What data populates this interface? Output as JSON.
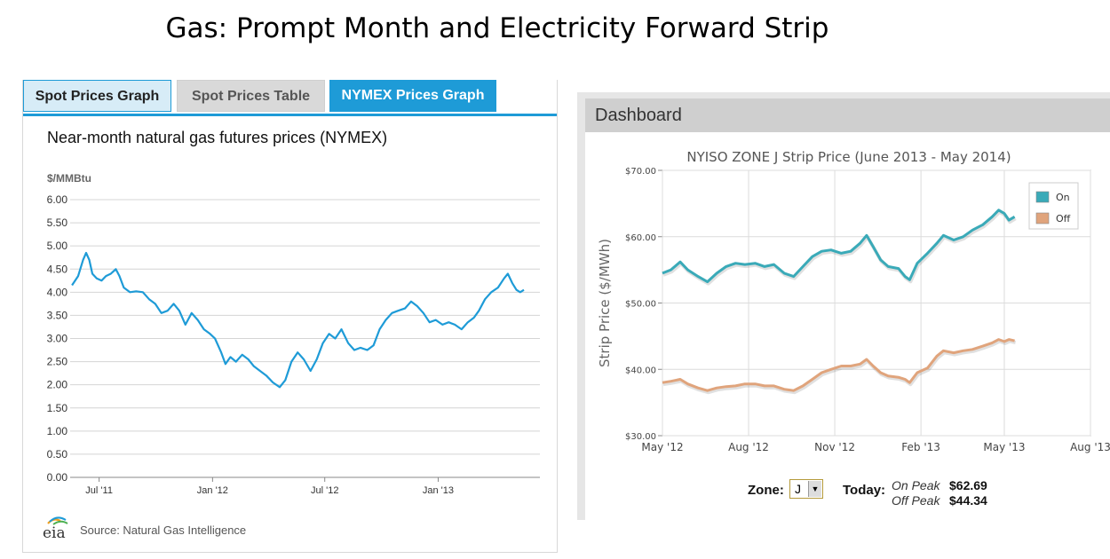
{
  "slide_title": "Gas: Prompt Month and Electricity Forward Strip",
  "eia": {
    "tabs": [
      "Spot Prices Graph",
      "Spot Prices Table",
      "NYMEX Prices Graph"
    ],
    "active_tab": "NYMEX Prices Graph",
    "source": "Source: Natural Gas Intelligence",
    "logo_text": "eia"
  },
  "dashboard": {
    "header": "Dashboard",
    "zone_label": "Zone:",
    "zone_value": "J",
    "today_label": "Today:",
    "on_peak_label": "On Peak",
    "on_peak_value": "$62.69",
    "off_peak_label": "Off Peak",
    "off_peak_value": "$44.34"
  },
  "colors": {
    "accent": "#1e9bd7",
    "on": "#3aaab8",
    "off": "#e0a47c"
  },
  "chart_data": [
    {
      "type": "line",
      "title": "Near-month natural gas futures prices (NYMEX)",
      "ylabel": "$/MMBtu",
      "ylim": [
        0,
        6
      ],
      "yticks": [
        "0.00",
        "0.50",
        "1.00",
        "1.50",
        "2.00",
        "2.50",
        "3.00",
        "3.50",
        "4.00",
        "4.50",
        "5.00",
        "5.50",
        "6.00"
      ],
      "xticks": [
        {
          "label": "Jul '11",
          "x": "2011-07-01"
        },
        {
          "label": "Jan '12",
          "x": "2012-01-01"
        },
        {
          "label": "Jul '12",
          "x": "2012-07-01"
        },
        {
          "label": "Jan '13",
          "x": "2013-01-01"
        }
      ],
      "xlim": [
        "2011-05-15",
        "2013-06-15"
      ],
      "grid": true,
      "series": [
        {
          "color": "#1e9bd7",
          "points": [
            [
              "2011-05-18",
              4.15
            ],
            [
              "2011-05-28",
              4.35
            ],
            [
              "2011-06-05",
              4.7
            ],
            [
              "2011-06-10",
              4.85
            ],
            [
              "2011-06-15",
              4.7
            ],
            [
              "2011-06-20",
              4.4
            ],
            [
              "2011-06-27",
              4.3
            ],
            [
              "2011-07-05",
              4.25
            ],
            [
              "2011-07-12",
              4.35
            ],
            [
              "2011-07-20",
              4.4
            ],
            [
              "2011-07-28",
              4.5
            ],
            [
              "2011-08-03",
              4.35
            ],
            [
              "2011-08-10",
              4.1
            ],
            [
              "2011-08-20",
              4.0
            ],
            [
              "2011-08-30",
              4.02
            ],
            [
              "2011-09-10",
              4.0
            ],
            [
              "2011-09-20",
              3.85
            ],
            [
              "2011-09-30",
              3.75
            ],
            [
              "2011-10-10",
              3.55
            ],
            [
              "2011-10-20",
              3.6
            ],
            [
              "2011-10-30",
              3.75
            ],
            [
              "2011-11-08",
              3.6
            ],
            [
              "2011-11-18",
              3.3
            ],
            [
              "2011-11-28",
              3.55
            ],
            [
              "2011-12-08",
              3.4
            ],
            [
              "2011-12-18",
              3.2
            ],
            [
              "2011-12-28",
              3.1
            ],
            [
              "2012-01-05",
              3.0
            ],
            [
              "2012-01-15",
              2.7
            ],
            [
              "2012-01-22",
              2.45
            ],
            [
              "2012-01-30",
              2.6
            ],
            [
              "2012-02-08",
              2.5
            ],
            [
              "2012-02-18",
              2.65
            ],
            [
              "2012-02-28",
              2.55
            ],
            [
              "2012-03-08",
              2.4
            ],
            [
              "2012-03-18",
              2.3
            ],
            [
              "2012-03-28",
              2.2
            ],
            [
              "2012-04-08",
              2.05
            ],
            [
              "2012-04-19",
              1.95
            ],
            [
              "2012-04-28",
              2.1
            ],
            [
              "2012-05-08",
              2.5
            ],
            [
              "2012-05-18",
              2.7
            ],
            [
              "2012-05-28",
              2.55
            ],
            [
              "2012-06-08",
              2.3
            ],
            [
              "2012-06-18",
              2.55
            ],
            [
              "2012-06-28",
              2.9
            ],
            [
              "2012-07-08",
              3.1
            ],
            [
              "2012-07-18",
              3.0
            ],
            [
              "2012-07-28",
              3.2
            ],
            [
              "2012-08-08",
              2.9
            ],
            [
              "2012-08-18",
              2.75
            ],
            [
              "2012-08-28",
              2.8
            ],
            [
              "2012-09-08",
              2.75
            ],
            [
              "2012-09-18",
              2.85
            ],
            [
              "2012-09-28",
              3.2
            ],
            [
              "2012-10-08",
              3.4
            ],
            [
              "2012-10-18",
              3.55
            ],
            [
              "2012-10-28",
              3.6
            ],
            [
              "2012-11-08",
              3.65
            ],
            [
              "2012-11-18",
              3.8
            ],
            [
              "2012-11-28",
              3.7
            ],
            [
              "2012-12-08",
              3.55
            ],
            [
              "2012-12-18",
              3.35
            ],
            [
              "2012-12-28",
              3.4
            ],
            [
              "2013-01-08",
              3.3
            ],
            [
              "2013-01-18",
              3.35
            ],
            [
              "2013-01-28",
              3.3
            ],
            [
              "2013-02-08",
              3.2
            ],
            [
              "2013-02-18",
              3.35
            ],
            [
              "2013-02-28",
              3.45
            ],
            [
              "2013-03-08",
              3.6
            ],
            [
              "2013-03-18",
              3.85
            ],
            [
              "2013-03-28",
              4.0
            ],
            [
              "2013-04-08",
              4.1
            ],
            [
              "2013-04-18",
              4.3
            ],
            [
              "2013-04-24",
              4.4
            ],
            [
              "2013-05-01",
              4.2
            ],
            [
              "2013-05-08",
              4.05
            ],
            [
              "2013-05-14",
              4.0
            ],
            [
              "2013-05-20",
              4.05
            ]
          ]
        }
      ]
    },
    {
      "type": "line",
      "title": "NYISO ZONE J Strip Price (June 2013 - May 2014)",
      "ylabel": "Strip Price ($/MWh)",
      "ylim": [
        30,
        70
      ],
      "yticks": [
        "$30.00",
        "$40.00",
        "$50.00",
        "$60.00",
        "$70.00"
      ],
      "xticks": [
        {
          "label": "May '12",
          "x": "2012-05-01"
        },
        {
          "label": "Aug '12",
          "x": "2012-08-01"
        },
        {
          "label": "Nov '12",
          "x": "2012-11-01"
        },
        {
          "label": "Feb '13",
          "x": "2013-02-01"
        },
        {
          "label": "May '13",
          "x": "2013-05-01"
        },
        {
          "label": "Aug '13",
          "x": "2013-08-01"
        }
      ],
      "xlim": [
        "2012-05-01",
        "2013-08-01"
      ],
      "legend": "top-right",
      "grid": true,
      "series": [
        {
          "name": "On",
          "color": "#3aaab8",
          "points": [
            [
              "2012-05-01",
              54.5
            ],
            [
              "2012-05-10",
              55.0
            ],
            [
              "2012-05-20",
              56.2
            ],
            [
              "2012-05-28",
              55.0
            ],
            [
              "2012-06-08",
              54.0
            ],
            [
              "2012-06-18",
              53.2
            ],
            [
              "2012-06-28",
              54.5
            ],
            [
              "2012-07-08",
              55.5
            ],
            [
              "2012-07-18",
              56.0
            ],
            [
              "2012-07-28",
              55.8
            ],
            [
              "2012-08-08",
              56.0
            ],
            [
              "2012-08-18",
              55.5
            ],
            [
              "2012-08-28",
              55.8
            ],
            [
              "2012-09-08",
              54.5
            ],
            [
              "2012-09-18",
              54.0
            ],
            [
              "2012-09-28",
              55.5
            ],
            [
              "2012-10-08",
              57.0
            ],
            [
              "2012-10-18",
              57.8
            ],
            [
              "2012-10-28",
              58.0
            ],
            [
              "2012-11-08",
              57.5
            ],
            [
              "2012-11-18",
              57.8
            ],
            [
              "2012-11-28",
              59.0
            ],
            [
              "2012-12-05",
              60.2
            ],
            [
              "2012-12-12",
              58.5
            ],
            [
              "2012-12-20",
              56.5
            ],
            [
              "2012-12-28",
              55.5
            ],
            [
              "2013-01-08",
              55.2
            ],
            [
              "2013-01-15",
              54.0
            ],
            [
              "2013-01-20",
              53.5
            ],
            [
              "2013-01-28",
              56.0
            ],
            [
              "2013-02-08",
              57.5
            ],
            [
              "2013-02-18",
              59.0
            ],
            [
              "2013-02-25",
              60.2
            ],
            [
              "2013-03-08",
              59.5
            ],
            [
              "2013-03-18",
              60.0
            ],
            [
              "2013-03-28",
              61.0
            ],
            [
              "2013-04-08",
              61.8
            ],
            [
              "2013-04-18",
              63.0
            ],
            [
              "2013-04-25",
              64.0
            ],
            [
              "2013-05-01",
              63.5
            ],
            [
              "2013-05-06",
              62.5
            ],
            [
              "2013-05-12",
              63.0
            ]
          ]
        },
        {
          "name": "Off",
          "color": "#e0a47c",
          "points": [
            [
              "2012-05-01",
              38.0
            ],
            [
              "2012-05-10",
              38.2
            ],
            [
              "2012-05-20",
              38.5
            ],
            [
              "2012-05-28",
              37.8
            ],
            [
              "2012-06-08",
              37.2
            ],
            [
              "2012-06-18",
              36.8
            ],
            [
              "2012-06-28",
              37.2
            ],
            [
              "2012-07-08",
              37.4
            ],
            [
              "2012-07-18",
              37.5
            ],
            [
              "2012-07-28",
              37.8
            ],
            [
              "2012-08-08",
              37.8
            ],
            [
              "2012-08-18",
              37.5
            ],
            [
              "2012-08-28",
              37.5
            ],
            [
              "2012-09-08",
              37.0
            ],
            [
              "2012-09-18",
              36.8
            ],
            [
              "2012-09-28",
              37.5
            ],
            [
              "2012-10-08",
              38.5
            ],
            [
              "2012-10-18",
              39.5
            ],
            [
              "2012-10-28",
              40.0
            ],
            [
              "2012-11-08",
              40.5
            ],
            [
              "2012-11-18",
              40.5
            ],
            [
              "2012-11-28",
              40.8
            ],
            [
              "2012-12-05",
              41.5
            ],
            [
              "2012-12-12",
              40.5
            ],
            [
              "2012-12-20",
              39.5
            ],
            [
              "2012-12-28",
              39.0
            ],
            [
              "2013-01-08",
              38.8
            ],
            [
              "2013-01-15",
              38.5
            ],
            [
              "2013-01-20",
              38.0
            ],
            [
              "2013-01-28",
              39.5
            ],
            [
              "2013-02-08",
              40.2
            ],
            [
              "2013-02-18",
              42.0
            ],
            [
              "2013-02-25",
              42.8
            ],
            [
              "2013-03-08",
              42.5
            ],
            [
              "2013-03-18",
              42.8
            ],
            [
              "2013-03-28",
              43.0
            ],
            [
              "2013-04-08",
              43.5
            ],
            [
              "2013-04-18",
              44.0
            ],
            [
              "2013-04-25",
              44.5
            ],
            [
              "2013-05-01",
              44.2
            ],
            [
              "2013-05-06",
              44.5
            ],
            [
              "2013-05-12",
              44.3
            ]
          ]
        }
      ]
    }
  ]
}
